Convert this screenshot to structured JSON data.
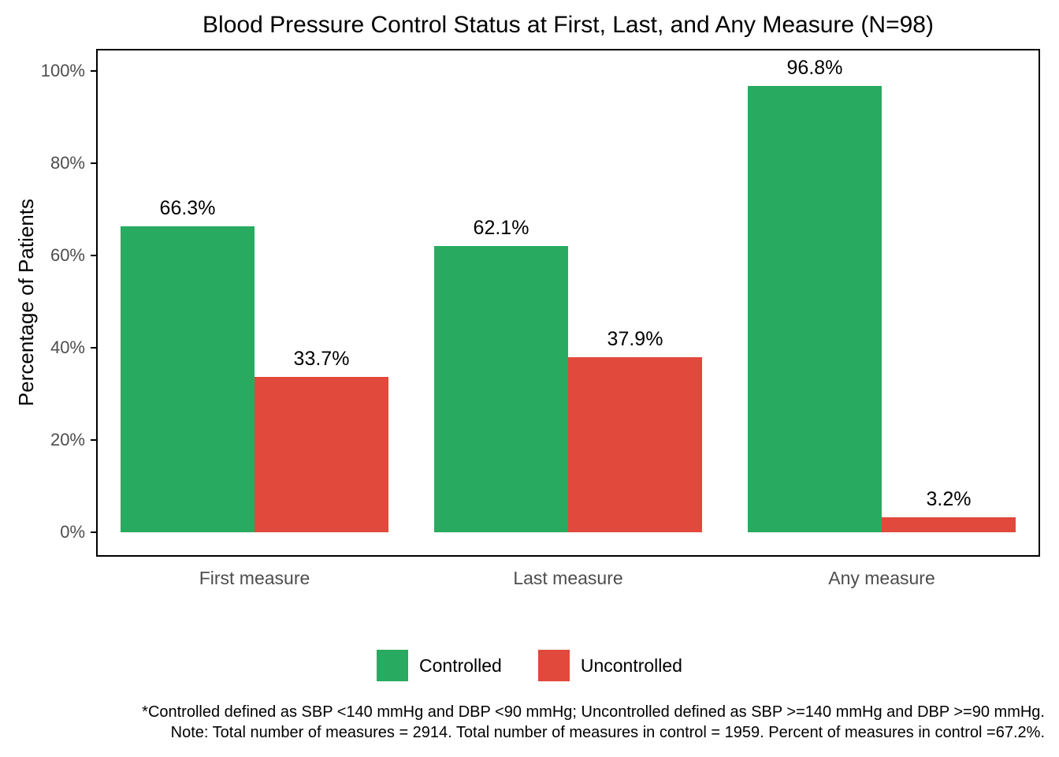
{
  "chart_data": {
    "type": "bar",
    "title": "Blood Pressure Control Status at First, Last, and Any Measure (N=98)",
    "xlabel": "",
    "ylabel": "Percentage of Patients",
    "categories": [
      "First measure",
      "Last measure",
      "Any measure"
    ],
    "series": [
      {
        "name": "Controlled",
        "color": "#28AB60",
        "values": [
          66.3,
          62.1,
          96.8
        ],
        "labels": [
          "66.3%",
          "62.1%",
          "96.8%"
        ]
      },
      {
        "name": "Uncontrolled",
        "color": "#E0493B",
        "values": [
          33.7,
          37.9,
          3.2
        ],
        "labels": [
          "33.7%",
          "37.9%",
          "3.2%"
        ]
      }
    ],
    "ylim": [
      0,
      100
    ],
    "yticks": {
      "values": [
        0,
        20,
        40,
        60,
        80,
        100
      ],
      "labels": [
        "0%",
        "20%",
        "40%",
        "60%",
        "80%",
        "100%"
      ]
    },
    "grid": false,
    "legend_position": "bottom"
  },
  "footnotes": {
    "line1": "*Controlled defined as SBP <140 mmHg and DBP <90 mmHg; Uncontrolled defined as SBP >=140 mmHg and DBP >=90 mmHg.",
    "line2": "Note: Total number of measures = 2914. Total number of measures in control = 1959. Percent of measures in control =67.2%."
  }
}
